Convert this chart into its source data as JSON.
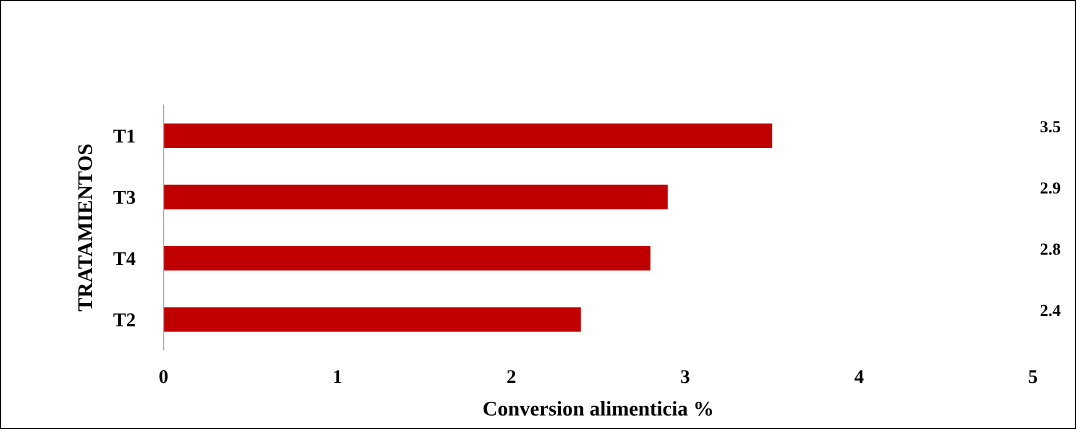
{
  "chart_data": {
    "type": "bar",
    "orientation": "horizontal",
    "xlabel": "Conversion alimenticia %",
    "ylabel": "TRATAMIENTOS",
    "categories": [
      "T1",
      "T3",
      "T4",
      "T2"
    ],
    "values": [
      3.5,
      2.9,
      2.8,
      2.4
    ],
    "color": "#c00000",
    "xlim": [
      0,
      5
    ],
    "xticks": [
      0,
      1,
      2,
      3,
      4,
      5
    ],
    "grid": false,
    "data_labels": true
  }
}
